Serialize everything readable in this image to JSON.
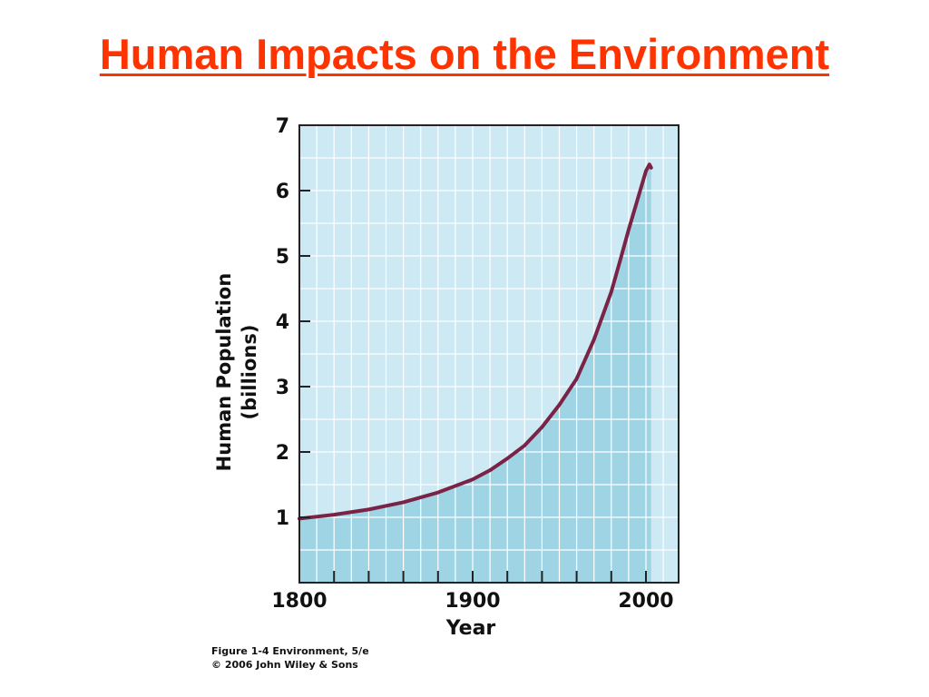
{
  "slide": {
    "title": "Human Impacts on the Environment",
    "title_color": "#ff3300"
  },
  "colors": {
    "plot_background": "#cde9f3",
    "area_fill": "#9ed4e4",
    "line": "#7b2346",
    "grid": "#ffffff",
    "axis": "#222222"
  },
  "chart_data": {
    "type": "area",
    "title": "",
    "xlabel": "Year",
    "ylabel": "Human Population (billions)",
    "ylabel_lines": [
      "Human Population",
      "(billions)"
    ],
    "xlim": [
      1800,
      2010
    ],
    "ylim": [
      0,
      7
    ],
    "x_tick_labels": [
      1800,
      1900,
      2000
    ],
    "x_minor_ticks": [
      1820,
      1840,
      1860,
      1880,
      1900,
      1920,
      1940,
      1960,
      1980,
      2000
    ],
    "y_ticks": [
      1,
      2,
      3,
      4,
      5,
      6,
      7
    ],
    "grid": true,
    "series": [
      {
        "x": [
          1800,
          1820,
          1840,
          1860,
          1880,
          1900,
          1910,
          1920,
          1930,
          1940,
          1950,
          1960,
          1970,
          1980,
          1985,
          1990,
          1995,
          2000,
          2002,
          2003
        ],
        "y": [
          0.98,
          1.04,
          1.12,
          1.23,
          1.38,
          1.58,
          1.72,
          1.9,
          2.1,
          2.38,
          2.72,
          3.12,
          3.72,
          4.45,
          4.92,
          5.4,
          5.85,
          6.3,
          6.4,
          6.35
        ]
      }
    ]
  },
  "credits": {
    "line1": "Figure 1-4  Environment, 5/e",
    "line2": "© 2006 John Wiley & Sons"
  }
}
